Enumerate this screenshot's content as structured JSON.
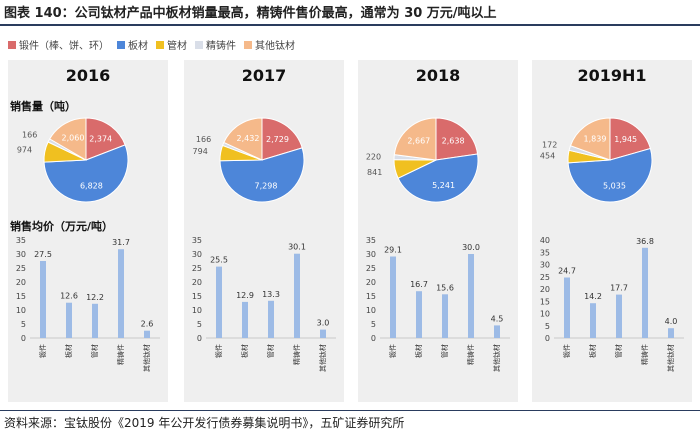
{
  "figure_title": "图表 140：公司钛材产品中板材销量最高，精铸件售价最高，通常为 30 万元/吨以上",
  "source": "资料来源：宝钛股份《2019 年公开发行债券募集说明书》，五矿证券研究所",
  "legend": [
    {
      "label": "锻件（棒、饼、环）",
      "color": "#d96b6b"
    },
    {
      "label": "板材",
      "color": "#4d86d9"
    },
    {
      "label": "管材",
      "color": "#f0c020"
    },
    {
      "label": "精铸件",
      "color": "#d9dee8"
    },
    {
      "label": "其他钛材",
      "color": "#f5b98a"
    }
  ],
  "sales_volume_label": "销售量（吨）",
  "avg_price_label": "销售均价（万元/吨）",
  "chart_data": [
    {
      "type": "pie",
      "year": "2016",
      "categories": [
        "锻件（棒、饼、环）",
        "板材",
        "管材",
        "精铸件",
        "其他钛材"
      ],
      "values": [
        2374,
        6828,
        974,
        166,
        2060
      ],
      "labels": [
        "2,374",
        "6,828",
        "974",
        "166",
        "2,060"
      ]
    },
    {
      "type": "pie",
      "year": "2017",
      "categories": [
        "锻件（棒、饼、环）",
        "板材",
        "管材",
        "精铸件",
        "其他钛材"
      ],
      "values": [
        2729,
        7298,
        794,
        166,
        2432
      ],
      "labels": [
        "2,729",
        "7,298",
        "794",
        "166",
        "2,432"
      ]
    },
    {
      "type": "pie",
      "year": "2018",
      "categories": [
        "锻件（棒、饼、环）",
        "板材",
        "管材",
        "精铸件",
        "其他钛材"
      ],
      "values": [
        2638,
        5241,
        841,
        220,
        2667
      ],
      "labels": [
        "2,638",
        "5,241",
        "841",
        "220",
        "2,667"
      ]
    },
    {
      "type": "pie",
      "year": "2019H1",
      "categories": [
        "锻件（棒、饼、环）",
        "板材",
        "管材",
        "精铸件",
        "其他钛材"
      ],
      "values": [
        1945,
        5035,
        454,
        172,
        1839
      ],
      "labels": [
        "1,945",
        "5,035",
        "454",
        "172",
        "1,839"
      ]
    },
    {
      "type": "bar",
      "year": "2016",
      "categories": [
        "锻件",
        "板材",
        "管材",
        "精铸件",
        "其他钛材"
      ],
      "values": [
        27.5,
        12.6,
        12.2,
        31.7,
        2.6
      ],
      "labels": [
        "27.5",
        "12.6",
        "12.2",
        "31.7",
        "2.6"
      ],
      "ylim": [
        0,
        35
      ],
      "yticks": [
        "0",
        "5",
        "10",
        "15",
        "20",
        "25",
        "30",
        "35"
      ]
    },
    {
      "type": "bar",
      "year": "2017",
      "categories": [
        "锻件",
        "板材",
        "管材",
        "精铸件",
        "其他钛材"
      ],
      "values": [
        25.5,
        12.9,
        13.3,
        30.1,
        3.0
      ],
      "labels": [
        "25.5",
        "12.9",
        "13.3",
        "30.1",
        "3.0"
      ],
      "ylim": [
        0,
        35
      ],
      "yticks": [
        "0",
        "5",
        "10",
        "15",
        "20",
        "25",
        "30",
        "35"
      ]
    },
    {
      "type": "bar",
      "year": "2018",
      "categories": [
        "锻件",
        "板材",
        "管材",
        "精铸件",
        "其他钛材"
      ],
      "values": [
        29.1,
        16.7,
        15.6,
        30.0,
        4.5
      ],
      "labels": [
        "29.1",
        "16.7",
        "15.6",
        "30.0",
        "4.5"
      ],
      "ylim": [
        0,
        35
      ],
      "yticks": [
        "0",
        "5",
        "10",
        "15",
        "20",
        "25",
        "30",
        "35"
      ]
    },
    {
      "type": "bar",
      "year": "2019H1",
      "categories": [
        "锻件",
        "板材",
        "管材",
        "精铸件",
        "其他钛材"
      ],
      "values": [
        24.7,
        14.2,
        17.7,
        36.8,
        4.0
      ],
      "labels": [
        "24.7",
        "14.2",
        "17.7",
        "36.8",
        "4.0"
      ],
      "ylim": [
        0,
        40
      ],
      "yticks": [
        "0",
        "5",
        "10",
        "15",
        "20",
        "25",
        "30",
        "35",
        "40"
      ]
    }
  ],
  "colors": {
    "bar": "#9dbbe6",
    "pie_border": "#ffffff",
    "label_light": "#ffffff",
    "label_dark": "#555555"
  }
}
